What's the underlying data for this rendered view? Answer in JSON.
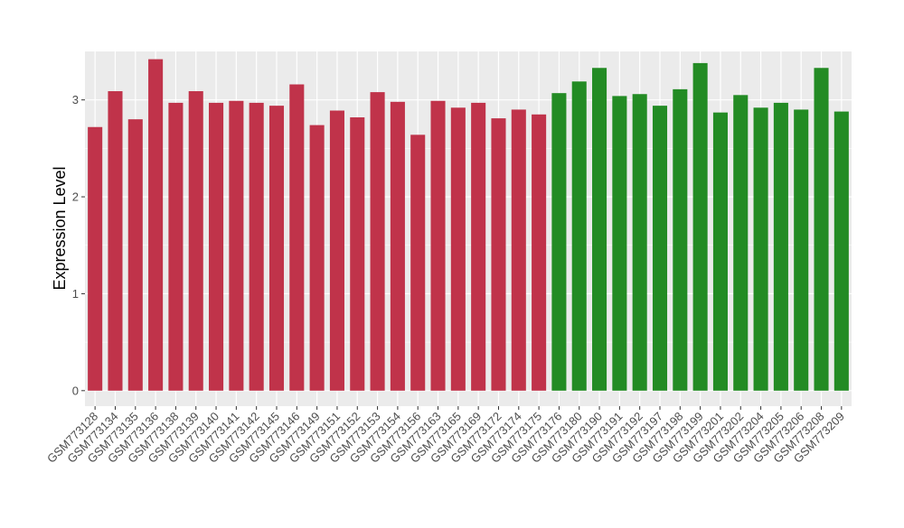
{
  "chart_data": {
    "type": "bar",
    "title": "",
    "xlabel": "",
    "ylabel": "Expression Level",
    "ylim": [
      -0.16,
      3.5
    ],
    "yticks": [
      0,
      1,
      2,
      3
    ],
    "grid": true,
    "legend": "none",
    "colors": {
      "group1": "#c0334a",
      "group2": "#238b24",
      "panel": "#ebebeb",
      "grid": "#ffffff",
      "text": "#000000",
      "tick_text": "#4d4d4d"
    },
    "categories": [
      "GSM773128",
      "GSM773134",
      "GSM773135",
      "GSM773136",
      "GSM773138",
      "GSM773139",
      "GSM773140",
      "GSM773141",
      "GSM773142",
      "GSM773145",
      "GSM773146",
      "GSM773149",
      "GSM773151",
      "GSM773152",
      "GSM773153",
      "GSM773154",
      "GSM773156",
      "GSM773163",
      "GSM773165",
      "GSM773169",
      "GSM773172",
      "GSM773174",
      "GSM773175",
      "GSM773176",
      "GSM773180",
      "GSM773190",
      "GSM773191",
      "GSM773192",
      "GSM773197",
      "GSM773198",
      "GSM773199",
      "GSM773201",
      "GSM773202",
      "GSM773204",
      "GSM773205",
      "GSM773206",
      "GSM773208",
      "GSM773209"
    ],
    "values": [
      2.72,
      3.09,
      2.8,
      3.42,
      2.97,
      3.09,
      2.97,
      2.99,
      2.97,
      2.94,
      3.16,
      2.74,
      2.89,
      2.82,
      3.08,
      2.98,
      2.64,
      2.99,
      2.92,
      2.97,
      2.81,
      2.9,
      2.85,
      3.07,
      3.19,
      3.33,
      3.04,
      3.06,
      2.94,
      3.11,
      3.38,
      2.87,
      3.05,
      2.92,
      2.97,
      2.9,
      3.33,
      2.88
    ],
    "groups": [
      1,
      1,
      1,
      1,
      1,
      1,
      1,
      1,
      1,
      1,
      1,
      1,
      1,
      1,
      1,
      1,
      1,
      1,
      1,
      1,
      1,
      1,
      1,
      2,
      2,
      2,
      2,
      2,
      2,
      2,
      2,
      2,
      2,
      2,
      2,
      2,
      2,
      2
    ]
  }
}
